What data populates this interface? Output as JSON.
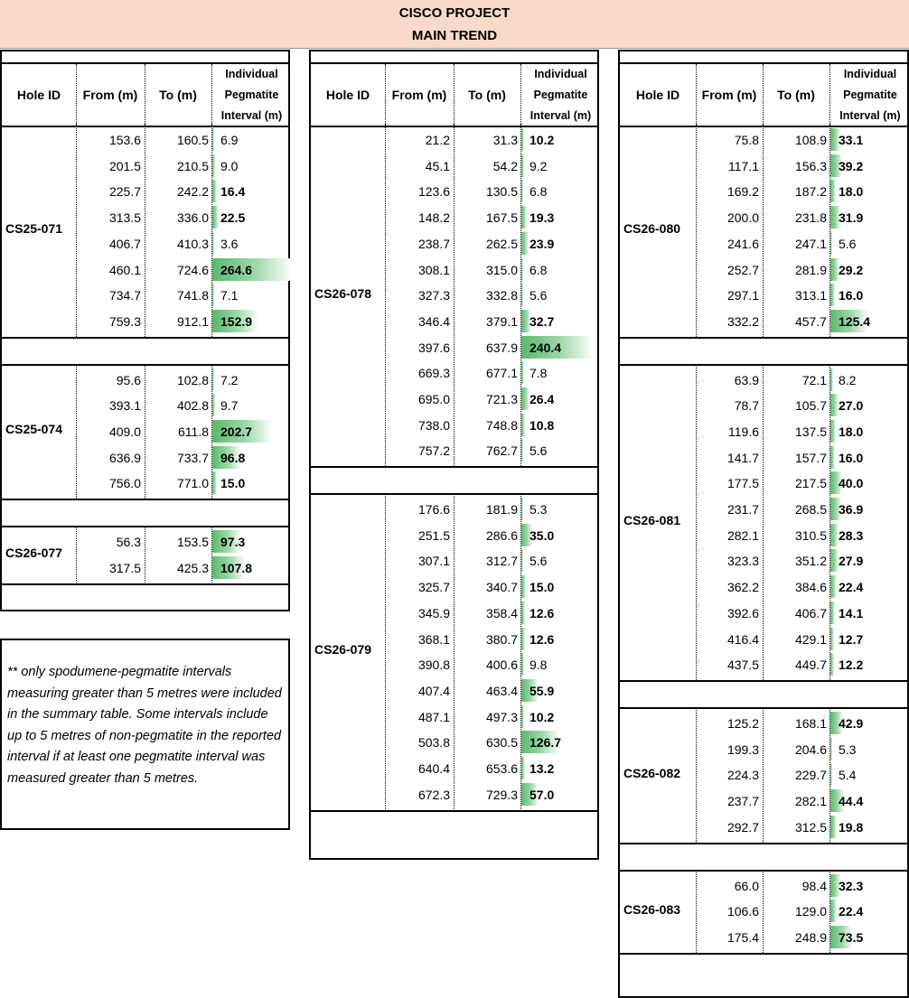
{
  "header": {
    "project": "CISCO PROJECT",
    "trend": "MAIN TREND"
  },
  "columns": {
    "hole_id": "Hole ID",
    "from": "From (m)",
    "to": "To (m)",
    "interval": "Individual Pegmatite Interval (m)"
  },
  "note": "** only spodumene-pegmatite intervals measuring greater than 5 metres were included in the summary table. Some intervals include up to 5 metres of non-pegmatite in the reported interval if at least one pegmatite interval was measured greater than 5 metres.",
  "panels": [
    {
      "groups": [
        {
          "hole_id": "CS25-071",
          "rows": [
            {
              "from": "153.6",
              "to": "160.5",
              "interval": "6.9",
              "bold": false,
              "value": 6.9
            },
            {
              "from": "201.5",
              "to": "210.5",
              "interval": "9.0",
              "bold": false,
              "value": 9.0
            },
            {
              "from": "225.7",
              "to": "242.2",
              "interval": "16.4",
              "bold": true,
              "value": 16.4
            },
            {
              "from": "313.5",
              "to": "336.0",
              "interval": "22.5",
              "bold": true,
              "value": 22.5
            },
            {
              "from": "406.7",
              "to": "410.3",
              "interval": "3.6",
              "bold": false,
              "value": 3.6
            },
            {
              "from": "460.1",
              "to": "724.6",
              "interval": "264.6",
              "bold": true,
              "value": 264.6
            },
            {
              "from": "734.7",
              "to": "741.8",
              "interval": "7.1",
              "bold": false,
              "value": 7.1
            },
            {
              "from": "759.3",
              "to": "912.1",
              "interval": "152.9",
              "bold": true,
              "value": 152.9
            }
          ]
        },
        {
          "hole_id": "CS25-074",
          "rows": [
            {
              "from": "95.6",
              "to": "102.8",
              "interval": "7.2",
              "bold": false,
              "value": 7.2
            },
            {
              "from": "393.1",
              "to": "402.8",
              "interval": "9.7",
              "bold": false,
              "value": 9.7
            },
            {
              "from": "409.0",
              "to": "611.8",
              "interval": "202.7",
              "bold": true,
              "value": 202.7
            },
            {
              "from": "636.9",
              "to": "733.7",
              "interval": "96.8",
              "bold": true,
              "value": 96.8
            },
            {
              "from": "756.0",
              "to": "771.0",
              "interval": "15.0",
              "bold": true,
              "value": 15.0
            }
          ]
        },
        {
          "hole_id": "CS26-077",
          "rows": [
            {
              "from": "56.3",
              "to": "153.5",
              "interval": "97.3",
              "bold": true,
              "value": 97.3
            },
            {
              "from": "317.5",
              "to": "425.3",
              "interval": "107.8",
              "bold": true,
              "value": 107.8
            }
          ]
        }
      ]
    },
    {
      "groups": [
        {
          "hole_id": "CS26-078",
          "rows": [
            {
              "from": "21.2",
              "to": "31.3",
              "interval": "10.2",
              "bold": true,
              "value": 10.2
            },
            {
              "from": "45.1",
              "to": "54.2",
              "interval": "9.2",
              "bold": false,
              "value": 9.2
            },
            {
              "from": "123.6",
              "to": "130.5",
              "interval": "6.8",
              "bold": false,
              "value": 6.8
            },
            {
              "from": "148.2",
              "to": "167.5",
              "interval": "19.3",
              "bold": true,
              "value": 19.3
            },
            {
              "from": "238.7",
              "to": "262.5",
              "interval": "23.9",
              "bold": true,
              "value": 23.9
            },
            {
              "from": "308.1",
              "to": "315.0",
              "interval": "6.8",
              "bold": false,
              "value": 6.8
            },
            {
              "from": "327.3",
              "to": "332.8",
              "interval": "5.6",
              "bold": false,
              "value": 5.6
            },
            {
              "from": "346.4",
              "to": "379.1",
              "interval": "32.7",
              "bold": true,
              "value": 32.7
            },
            {
              "from": "397.6",
              "to": "637.9",
              "interval": "240.4",
              "bold": true,
              "value": 240.4
            },
            {
              "from": "669.3",
              "to": "677.1",
              "interval": "7.8",
              "bold": false,
              "value": 7.8
            },
            {
              "from": "695.0",
              "to": "721.3",
              "interval": "26.4",
              "bold": true,
              "value": 26.4
            },
            {
              "from": "738.0",
              "to": "748.8",
              "interval": "10.8",
              "bold": true,
              "value": 10.8
            },
            {
              "from": "757.2",
              "to": "762.7",
              "interval": "5.6",
              "bold": false,
              "value": 5.6
            }
          ]
        },
        {
          "hole_id": "CS26-079",
          "rows": [
            {
              "from": "176.6",
              "to": "181.9",
              "interval": "5.3",
              "bold": false,
              "value": 5.3
            },
            {
              "from": "251.5",
              "to": "286.6",
              "interval": "35.0",
              "bold": true,
              "value": 35.0
            },
            {
              "from": "307.1",
              "to": "312.7",
              "interval": "5.6",
              "bold": false,
              "value": 5.6
            },
            {
              "from": "325.7",
              "to": "340.7",
              "interval": "15.0",
              "bold": true,
              "value": 15.0
            },
            {
              "from": "345.9",
              "to": "358.4",
              "interval": "12.6",
              "bold": true,
              "value": 12.6
            },
            {
              "from": "368.1",
              "to": "380.7",
              "interval": "12.6",
              "bold": true,
              "value": 12.6
            },
            {
              "from": "390.8",
              "to": "400.6",
              "interval": "9.8",
              "bold": false,
              "value": 9.8
            },
            {
              "from": "407.4",
              "to": "463.4",
              "interval": "55.9",
              "bold": true,
              "value": 55.9
            },
            {
              "from": "487.1",
              "to": "497.3",
              "interval": "10.2",
              "bold": true,
              "value": 10.2
            },
            {
              "from": "503.8",
              "to": "630.5",
              "interval": "126.7",
              "bold": true,
              "value": 126.7
            },
            {
              "from": "640.4",
              "to": "653.6",
              "interval": "13.2",
              "bold": true,
              "value": 13.2
            },
            {
              "from": "672.3",
              "to": "729.3",
              "interval": "57.0",
              "bold": true,
              "value": 57.0
            }
          ]
        }
      ]
    },
    {
      "groups": [
        {
          "hole_id": "CS26-080",
          "rows": [
            {
              "from": "75.8",
              "to": "108.9",
              "interval": "33.1",
              "bold": true,
              "value": 33.1
            },
            {
              "from": "117.1",
              "to": "156.3",
              "interval": "39.2",
              "bold": true,
              "value": 39.2
            },
            {
              "from": "169.2",
              "to": "187.2",
              "interval": "18.0",
              "bold": true,
              "value": 18.0
            },
            {
              "from": "200.0",
              "to": "231.8",
              "interval": "31.9",
              "bold": true,
              "value": 31.9
            },
            {
              "from": "241.6",
              "to": "247.1",
              "interval": "5.6",
              "bold": false,
              "value": 5.6
            },
            {
              "from": "252.7",
              "to": "281.9",
              "interval": "29.2",
              "bold": true,
              "value": 29.2
            },
            {
              "from": "297.1",
              "to": "313.1",
              "interval": "16.0",
              "bold": true,
              "value": 16.0
            },
            {
              "from": "332.2",
              "to": "457.7",
              "interval": "125.4",
              "bold": true,
              "value": 125.4
            }
          ]
        },
        {
          "hole_id": "CS26-081",
          "rows": [
            {
              "from": "63.9",
              "to": "72.1",
              "interval": "8.2",
              "bold": false,
              "value": 8.2
            },
            {
              "from": "78.7",
              "to": "105.7",
              "interval": "27.0",
              "bold": true,
              "value": 27.0
            },
            {
              "from": "119.6",
              "to": "137.5",
              "interval": "18.0",
              "bold": true,
              "value": 18.0
            },
            {
              "from": "141.7",
              "to": "157.7",
              "interval": "16.0",
              "bold": true,
              "value": 16.0
            },
            {
              "from": "177.5",
              "to": "217.5",
              "interval": "40.0",
              "bold": true,
              "value": 40.0
            },
            {
              "from": "231.7",
              "to": "268.5",
              "interval": "36.9",
              "bold": true,
              "value": 36.9
            },
            {
              "from": "282.1",
              "to": "310.5",
              "interval": "28.3",
              "bold": true,
              "value": 28.3
            },
            {
              "from": "323.3",
              "to": "351.2",
              "interval": "27.9",
              "bold": true,
              "value": 27.9
            },
            {
              "from": "362.2",
              "to": "384.6",
              "interval": "22.4",
              "bold": true,
              "value": 22.4
            },
            {
              "from": "392.6",
              "to": "406.7",
              "interval": "14.1",
              "bold": true,
              "value": 14.1
            },
            {
              "from": "416.4",
              "to": "429.1",
              "interval": "12.7",
              "bold": true,
              "value": 12.7
            },
            {
              "from": "437.5",
              "to": "449.7",
              "interval": "12.2",
              "bold": true,
              "value": 12.2
            }
          ]
        },
        {
          "hole_id": "CS26-082",
          "rows": [
            {
              "from": "125.2",
              "to": "168.1",
              "interval": "42.9",
              "bold": true,
              "value": 42.9
            },
            {
              "from": "199.3",
              "to": "204.6",
              "interval": "5.3",
              "bold": false,
              "value": 5.3
            },
            {
              "from": "224.3",
              "to": "229.7",
              "interval": "5.4",
              "bold": false,
              "value": 5.4
            },
            {
              "from": "237.7",
              "to": "282.1",
              "interval": "44.4",
              "bold": true,
              "value": 44.4
            },
            {
              "from": "292.7",
              "to": "312.5",
              "interval": "19.8",
              "bold": true,
              "value": 19.8
            }
          ]
        },
        {
          "hole_id": "CS26-083",
          "rows": [
            {
              "from": "66.0",
              "to": "98.4",
              "interval": "32.3",
              "bold": true,
              "value": 32.3
            },
            {
              "from": "106.6",
              "to": "129.0",
              "interval": "22.4",
              "bold": true,
              "value": 22.4
            },
            {
              "from": "175.4",
              "to": "248.9",
              "interval": "73.5",
              "bold": true,
              "value": 73.5
            }
          ]
        }
      ]
    }
  ]
}
